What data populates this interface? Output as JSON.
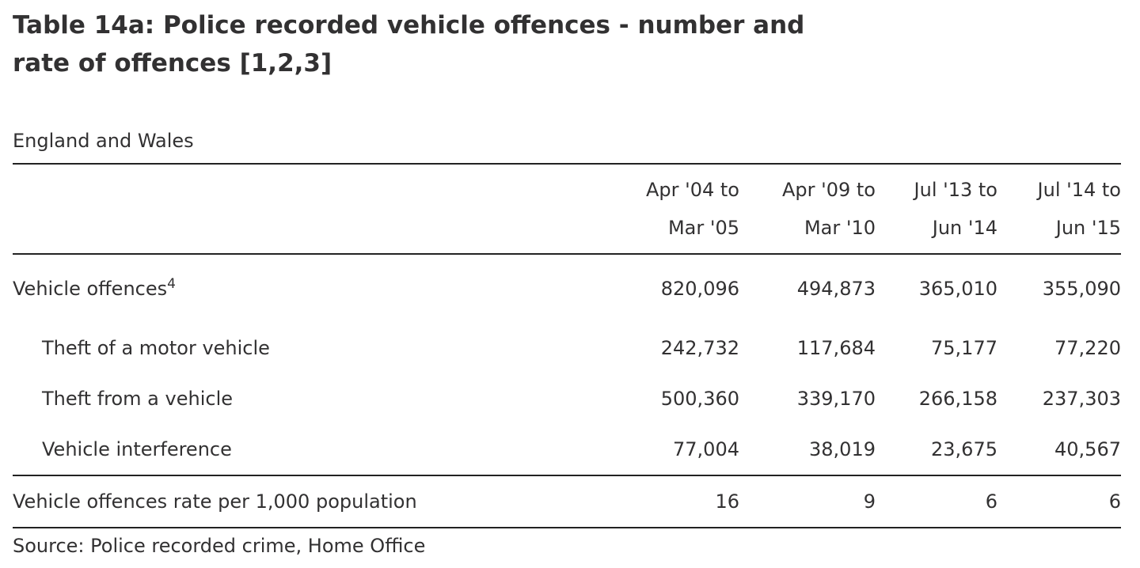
{
  "title": {
    "line1": "Table 14a: Police recorded vehicle offences - number and",
    "line2": "rate of offences [1,2,3]"
  },
  "region": "England and Wales",
  "columns": [
    {
      "line1": "Apr '04 to",
      "line2": "Mar '05"
    },
    {
      "line1": "Apr '09 to",
      "line2": "Mar '10"
    },
    {
      "line1": "Jul '13 to",
      "line2": "Jun '14"
    },
    {
      "line1": "Jul '14 to",
      "line2": "Jun '15"
    }
  ],
  "rows": [
    {
      "label": "Vehicle offences",
      "footnote": "4",
      "values": [
        "820,096",
        "494,873",
        "365,010",
        "355,090"
      ]
    },
    {
      "label": "Theft of a motor vehicle",
      "values": [
        "242,732",
        "117,684",
        "75,177",
        "77,220"
      ]
    },
    {
      "label": "Theft from a vehicle",
      "values": [
        "500,360",
        "339,170",
        "266,158",
        "237,303"
      ]
    },
    {
      "label": "Vehicle interference",
      "values": [
        "77,004",
        "38,019",
        "23,675",
        "40,567"
      ]
    },
    {
      "label": "Vehicle offences rate per 1,000 population",
      "values": [
        "16",
        "9",
        "6",
        "6"
      ]
    }
  ],
  "source": "Source: Police recorded crime, Home Office"
}
